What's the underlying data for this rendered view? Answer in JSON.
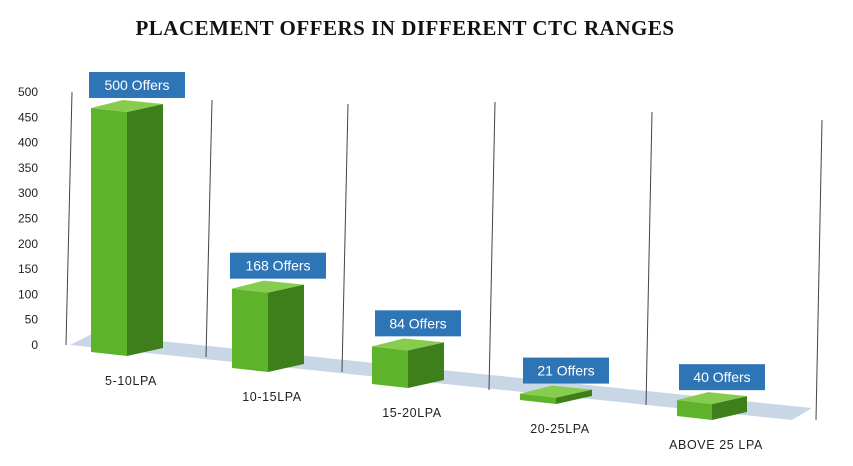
{
  "chart_data": {
    "type": "bar",
    "title": "PLACEMENT OFFERS IN DIFFERENT CTC RANGES",
    "categories": [
      "5-10LPA",
      "10-15LPA",
      "15-20LPA",
      "20-25LPA",
      "ABOVE 25 LPA"
    ],
    "values": [
      500,
      168,
      84,
      21,
      40
    ],
    "data_labels": [
      "500 Offers",
      "168 Offers",
      "84 Offers",
      "21 Offers",
      "40 Offers"
    ],
    "yticks": [
      0,
      50,
      100,
      150,
      200,
      250,
      300,
      350,
      400,
      450,
      500
    ],
    "ylim": [
      0,
      500
    ],
    "xlabel": "",
    "ylabel": "",
    "grid": false,
    "legend": "none",
    "colors": {
      "bar_front": "#5fb32a",
      "bar_side": "#3f7f1b",
      "bar_top": "#86cc4e",
      "label_bg": "#2e75b6",
      "floor": "#c9d6e5"
    }
  }
}
